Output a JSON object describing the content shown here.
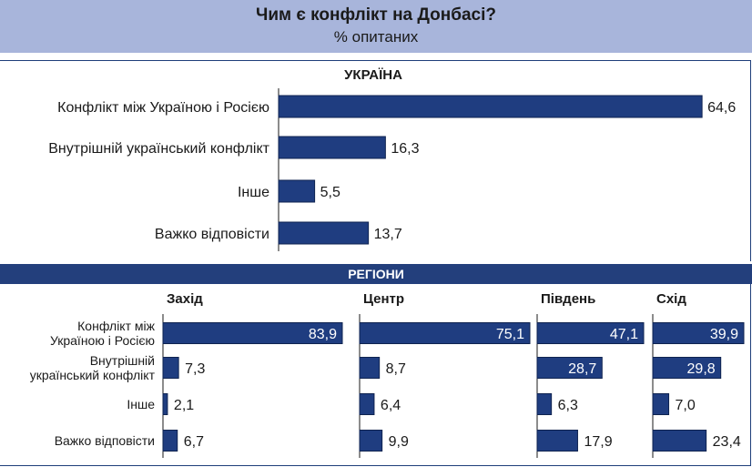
{
  "title": "Чим є конфлікт на Донбасі?",
  "subtitle": "% опитаних",
  "bar_color": "#1f3d80",
  "header_color": "#a8b5db",
  "region_band_color": "#233f7c",
  "chart_data": [
    {
      "type": "bar",
      "orientation": "horizontal",
      "title": "УКРАЇНА",
      "categories": [
        "Конфлікт між Україною і Росією",
        "Внутрішній український конфлікт",
        "Інше",
        "Важко відповісти"
      ],
      "values": [
        64.6,
        16.3,
        5.5,
        13.7
      ],
      "value_labels": [
        "64,6",
        "16,3",
        "5,5",
        "13,7"
      ]
    },
    {
      "type": "bar",
      "orientation": "horizontal",
      "title": "РЕГІОНИ",
      "categories": [
        [
          "Конфлікт між",
          "Україною і Росією"
        ],
        [
          "Внутрішній",
          "український конфлікт"
        ],
        [
          "Інше"
        ],
        [
          "Важко відповісти"
        ]
      ],
      "series": [
        {
          "name": "Захід",
          "values": [
            83.9,
            7.3,
            2.1,
            6.7
          ],
          "value_labels": [
            "83,9",
            "7,3",
            "2,1",
            "6,7"
          ]
        },
        {
          "name": "Центр",
          "values": [
            75.1,
            8.7,
            6.4,
            9.9
          ],
          "value_labels": [
            "75,1",
            "8,7",
            "6,4",
            "9,9"
          ]
        },
        {
          "name": "Південь",
          "values": [
            47.1,
            28.7,
            6.3,
            17.9
          ],
          "value_labels": [
            "47,1",
            "28,7",
            "6,3",
            "17,9"
          ]
        },
        {
          "name": "Схід",
          "values": [
            39.9,
            29.8,
            7.0,
            23.4
          ],
          "value_labels": [
            "39,9",
            "29,8",
            "7,0",
            "23,4"
          ]
        }
      ]
    }
  ]
}
